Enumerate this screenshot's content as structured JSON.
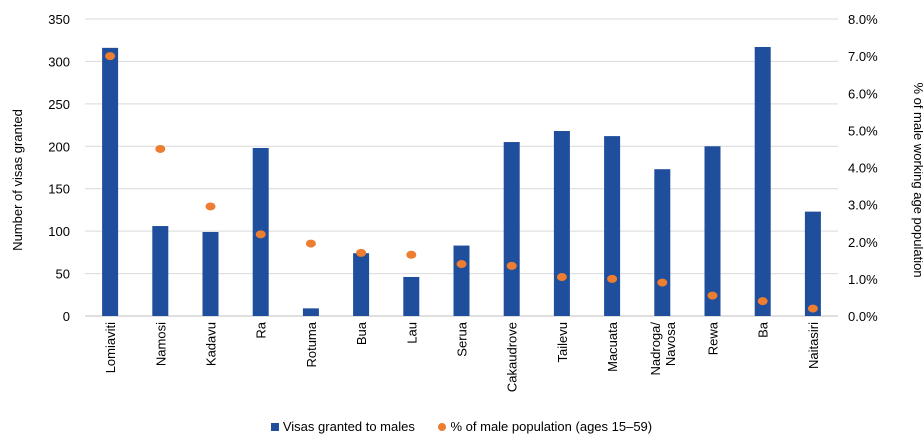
{
  "chart_data": {
    "type": "bar",
    "categories": [
      "Lomiaviti",
      "Namosi",
      "Kadavu",
      "Ra",
      "Rotuma",
      "Bua",
      "Lau",
      "Serua",
      "Cakaudrove",
      "Tailevu",
      "Macuata",
      "Nadroga/\nNavosa",
      "Rewa",
      "Ba",
      "Naitasiri"
    ],
    "category_label_lines": [
      [
        "Lomiaviti"
      ],
      [
        "Namosi"
      ],
      [
        "Kadavu"
      ],
      [
        "Ra"
      ],
      [
        "Rotuma"
      ],
      [
        "Bua"
      ],
      [
        "Lau"
      ],
      [
        "Serua"
      ],
      [
        "Cakaudrove"
      ],
      [
        "Tailevu"
      ],
      [
        "Macuata"
      ],
      [
        "Nadroga/",
        "Navosa"
      ],
      [
        "Rewa"
      ],
      [
        "Ba"
      ],
      [
        "Naitasiri"
      ]
    ],
    "series": [
      {
        "name": "Visas granted to males",
        "type": "bar",
        "axis": "left",
        "color": "#1f4e9c",
        "values": [
          316,
          106,
          99,
          198,
          9,
          74,
          46,
          83,
          205,
          218,
          212,
          173,
          200,
          317,
          123
        ]
      },
      {
        "name": "% of male population (ages 15–59)",
        "type": "scatter",
        "axis": "right",
        "color": "#ed7d31",
        "values": [
          7.0,
          4.5,
          2.95,
          2.2,
          1.95,
          1.7,
          1.65,
          1.4,
          1.35,
          1.05,
          1.0,
          0.9,
          0.55,
          0.4,
          0.2
        ]
      }
    ],
    "ylabel": "Number of visas granted",
    "ylabel_right": "% of male working age population",
    "ylim": [
      0,
      350
    ],
    "yticks": [
      0,
      50,
      100,
      150,
      200,
      250,
      300,
      350
    ],
    "ylim_right": [
      0,
      8
    ],
    "yticks_right": [
      "0.0%",
      "1.0%",
      "2.0%",
      "3.0%",
      "4.0%",
      "5.0%",
      "6.0%",
      "7.0%",
      "8.0%"
    ],
    "grid": true,
    "legend": "bottom-center"
  }
}
